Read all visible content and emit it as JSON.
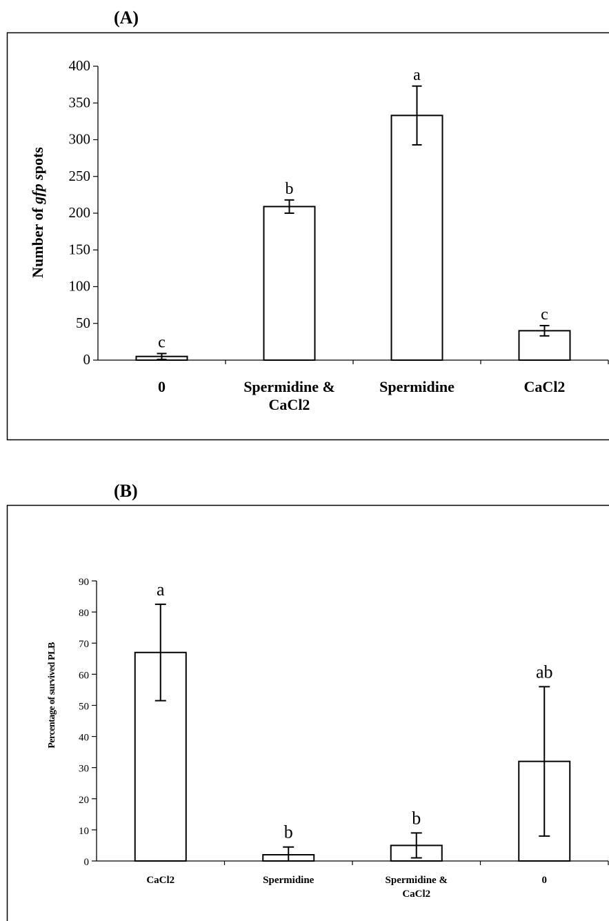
{
  "chart_data": [
    {
      "type": "bar",
      "panel_label": "(A)",
      "title": "",
      "ylabel": "Number of gfp spots",
      "ylabel_parts": [
        "Number of ",
        "gfp",
        " s",
        "pots"
      ],
      "xlabel": "",
      "ylim": [
        0,
        400
      ],
      "yticks": [
        "0",
        "50",
        "100",
        "150",
        "200",
        "250",
        "300",
        "350",
        "400"
      ],
      "categories": [
        [
          "0"
        ],
        [
          "Spermidine &",
          "CaCl2"
        ],
        [
          "Spermidine"
        ],
        [
          "CaCl2"
        ]
      ],
      "values": [
        5,
        209,
        333,
        40
      ],
      "errors": [
        4,
        9,
        40,
        7
      ],
      "significance": [
        "c",
        "b",
        "a",
        "c"
      ],
      "grid": false,
      "legend": "none"
    },
    {
      "type": "bar",
      "panel_label": "(B)",
      "title": "",
      "ylabel": "Percentage of survived PLB",
      "xlabel": "",
      "ylim": [
        0,
        90
      ],
      "yticks": [
        "0",
        "10",
        "20",
        "30",
        "40",
        "50",
        "60",
        "70",
        "80",
        "90"
      ],
      "categories": [
        [
          "CaCl2"
        ],
        [
          "Spermidine"
        ],
        [
          "Spermidine &",
          "CaCl2"
        ],
        [
          "0"
        ]
      ],
      "values": [
        67,
        2,
        5,
        32
      ],
      "errors": [
        15.5,
        2.5,
        4,
        24
      ],
      "significance": [
        "a",
        "b",
        "b",
        "ab"
      ],
      "grid": false,
      "legend": "none"
    }
  ]
}
